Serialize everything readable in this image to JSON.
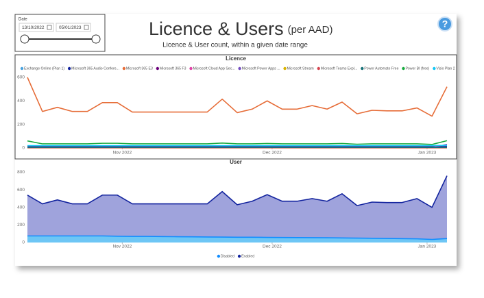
{
  "header": {
    "title": "Licence & Users",
    "title_note": "(per AAD)",
    "subtitle": "Licence & User count, within a given date range",
    "help": "?"
  },
  "slicer": {
    "label": "Date",
    "start": "13/10/2022",
    "end": "05/01/2023"
  },
  "chart_data": [
    {
      "type": "line",
      "title": "Licence",
      "xlim": [
        0,
        28
      ],
      "xticks": [
        {
          "value": 6.33,
          "label": "Nov 2022"
        },
        {
          "value": 16.33,
          "label": "Dec 2022"
        },
        {
          "value": 26.67,
          "label": "Jan 2023"
        }
      ],
      "ylim": [
        0,
        640
      ],
      "yticks": [
        0,
        200,
        400,
        600
      ],
      "grid": false,
      "legend": "top",
      "series": [
        {
          "name": "Exchange Online (Plan 1)",
          "color": "#4aa3df",
          "values": [
            4,
            4,
            4,
            4,
            4,
            4,
            4,
            4,
            4,
            4,
            4,
            4,
            4,
            4,
            4,
            4,
            4,
            4,
            4,
            4,
            4,
            4,
            4,
            4,
            4,
            4,
            4,
            4,
            4
          ]
        },
        {
          "name": "Microsoft 365 Audio Confere...",
          "color": "#12239e",
          "values": [
            10,
            10,
            10,
            10,
            10,
            10,
            10,
            10,
            10,
            10,
            10,
            10,
            10,
            10,
            10,
            10,
            10,
            10,
            10,
            10,
            10,
            10,
            10,
            10,
            10,
            10,
            10,
            10,
            12
          ]
        },
        {
          "name": "Microsoft 365 E3",
          "color": "#e66c37",
          "values": [
            600,
            310,
            345,
            310,
            310,
            385,
            385,
            305,
            305,
            305,
            305,
            305,
            305,
            415,
            300,
            330,
            400,
            330,
            330,
            360,
            330,
            390,
            290,
            320,
            315,
            315,
            340,
            270,
            520
          ]
        },
        {
          "name": "Microsoft 365 F3",
          "color": "#6b007b",
          "values": [
            6,
            6,
            6,
            6,
            6,
            6,
            6,
            6,
            6,
            6,
            6,
            6,
            6,
            6,
            6,
            6,
            6,
            6,
            6,
            6,
            6,
            6,
            6,
            6,
            6,
            6,
            6,
            6,
            6
          ]
        },
        {
          "name": "Microsoft Cloud App Sec...",
          "color": "#e044a7",
          "values": [
            2,
            2,
            2,
            2,
            2,
            2,
            2,
            2,
            2,
            2,
            2,
            2,
            2,
            2,
            2,
            2,
            2,
            2,
            2,
            2,
            2,
            2,
            2,
            2,
            2,
            2,
            2,
            2,
            2
          ]
        },
        {
          "name": "Microsoft Power Apps ...",
          "color": "#744ec2",
          "values": [
            3,
            3,
            3,
            3,
            3,
            3,
            3,
            3,
            3,
            3,
            3,
            3,
            3,
            3,
            3,
            3,
            3,
            3,
            3,
            3,
            3,
            3,
            3,
            3,
            3,
            3,
            3,
            3,
            30
          ]
        },
        {
          "name": "Microsoft Stream",
          "color": "#d9b300",
          "values": [
            1,
            1,
            1,
            1,
            1,
            1,
            1,
            1,
            1,
            1,
            1,
            1,
            1,
            1,
            1,
            1,
            1,
            1,
            1,
            1,
            1,
            1,
            1,
            1,
            1,
            1,
            1,
            1,
            1
          ]
        },
        {
          "name": "Microsoft Teams Expl...",
          "color": "#d64550",
          "values": [
            2,
            2,
            2,
            2,
            2,
            2,
            2,
            2,
            2,
            2,
            2,
            2,
            2,
            2,
            2,
            2,
            2,
            2,
            2,
            2,
            2,
            2,
            2,
            2,
            2,
            2,
            2,
            2,
            2
          ]
        },
        {
          "name": "Power Automate Free",
          "color": "#197278",
          "values": [
            5,
            5,
            5,
            5,
            5,
            5,
            5,
            5,
            5,
            5,
            5,
            5,
            5,
            5,
            5,
            5,
            5,
            5,
            5,
            5,
            5,
            5,
            5,
            5,
            5,
            5,
            5,
            5,
            5
          ]
        },
        {
          "name": "Power BI (free)",
          "color": "#1aab40",
          "values": [
            60,
            35,
            35,
            35,
            35,
            40,
            40,
            35,
            35,
            35,
            35,
            35,
            35,
            42,
            35,
            35,
            38,
            35,
            35,
            35,
            35,
            38,
            32,
            35,
            35,
            35,
            35,
            30,
            62
          ]
        },
        {
          "name": "Visio Plan 2",
          "color": "#15c6f4",
          "values": [
            20,
            20,
            20,
            20,
            20,
            20,
            20,
            20,
            20,
            20,
            20,
            20,
            20,
            20,
            20,
            20,
            20,
            20,
            20,
            20,
            20,
            20,
            20,
            20,
            20,
            20,
            20,
            20,
            22
          ]
        }
      ]
    },
    {
      "type": "area",
      "title": "User",
      "xlim": [
        0,
        28
      ],
      "xticks": [
        {
          "value": 6.33,
          "label": "Nov 2022"
        },
        {
          "value": 16.33,
          "label": "Dec 2022"
        },
        {
          "value": 26.67,
          "label": "Jan 2023"
        }
      ],
      "ylim": [
        0,
        850
      ],
      "yticks": [
        0,
        200,
        400,
        600,
        800
      ],
      "grid": false,
      "legend": "bottom",
      "series": [
        {
          "name": "Disabled",
          "color": "#118dff",
          "fill": "#6ec6f5",
          "values": [
            75,
            75,
            75,
            75,
            75,
            75,
            72,
            70,
            70,
            68,
            66,
            65,
            63,
            62,
            60,
            60,
            58,
            57,
            56,
            55,
            54,
            52,
            50,
            48,
            46,
            44,
            42,
            35,
            45
          ]
        },
        {
          "name": "Enabled",
          "color": "#12239e",
          "fill": "#9fa3dc",
          "values": [
            540,
            440,
            485,
            440,
            440,
            540,
            540,
            440,
            440,
            440,
            440,
            440,
            440,
            580,
            430,
            470,
            545,
            470,
            470,
            500,
            470,
            555,
            420,
            460,
            455,
            455,
            500,
            400,
            760
          ]
        }
      ]
    }
  ]
}
